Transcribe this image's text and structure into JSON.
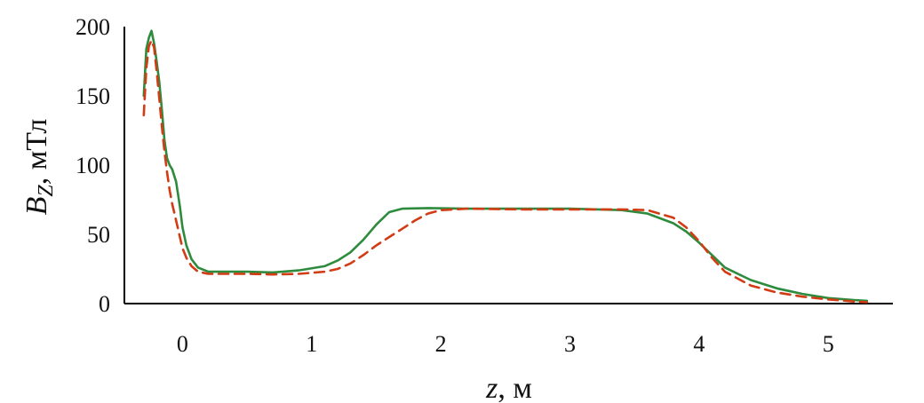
{
  "chart_data": {
    "type": "line",
    "xlabel": "z, м",
    "ylabel": "BZ, мТл",
    "xlim": [
      -0.45,
      5.5
    ],
    "ylim": [
      0,
      200
    ],
    "x_ticks": [
      "0",
      "1",
      "2",
      "3",
      "4",
      "5"
    ],
    "y_ticks": [
      "0",
      "50",
      "100",
      "150",
      "200"
    ],
    "grid": false,
    "series": [
      {
        "color": "#2e8b3e",
        "style": "solid",
        "x": [
          -0.3,
          -0.28,
          -0.26,
          -0.24,
          -0.22,
          -0.2,
          -0.18,
          -0.16,
          -0.14,
          -0.12,
          -0.1,
          -0.08,
          -0.05,
          -0.02,
          0.0,
          0.03,
          0.07,
          0.12,
          0.2,
          0.35,
          0.5,
          0.7,
          0.9,
          1.1,
          1.2,
          1.3,
          1.4,
          1.5,
          1.6,
          1.7,
          1.9,
          2.2,
          2.6,
          3.0,
          3.4,
          3.6,
          3.8,
          3.9,
          4.0,
          4.1,
          4.2,
          4.4,
          4.6,
          4.8,
          5.0,
          5.2,
          5.3
        ],
        "y": [
          150,
          184,
          192,
          197,
          188,
          175,
          160,
          140,
          118,
          105,
          100,
          97,
          88,
          70,
          55,
          42,
          32,
          26,
          23,
          23,
          23,
          22.5,
          24,
          27,
          31,
          37,
          46,
          57,
          66,
          68.5,
          69,
          68.5,
          68.5,
          68.5,
          67.5,
          65,
          58,
          52,
          44,
          35,
          26,
          17,
          11,
          7,
          4,
          2.5,
          2
        ]
      },
      {
        "color": "#d23c14",
        "style": "dashed",
        "x": [
          -0.3,
          -0.28,
          -0.26,
          -0.24,
          -0.22,
          -0.2,
          -0.18,
          -0.16,
          -0.14,
          -0.12,
          -0.1,
          -0.08,
          -0.05,
          -0.02,
          0.0,
          0.03,
          0.07,
          0.12,
          0.2,
          0.35,
          0.5,
          0.7,
          0.9,
          1.1,
          1.2,
          1.3,
          1.4,
          1.5,
          1.6,
          1.7,
          1.8,
          1.9,
          2.0,
          2.2,
          2.6,
          3.0,
          3.4,
          3.6,
          3.8,
          3.9,
          4.0,
          4.1,
          4.2,
          4.4,
          4.6,
          4.8,
          5.0,
          5.2,
          5.3
        ],
        "y": [
          136,
          170,
          186,
          190,
          185,
          168,
          148,
          128,
          110,
          95,
          82,
          72,
          60,
          48,
          40,
          33,
          27,
          23,
          21.5,
          21.5,
          21.5,
          21,
          21.5,
          23,
          25,
          29,
          35,
          42,
          48,
          54,
          60,
          65,
          67.5,
          68.5,
          68,
          68,
          68,
          67.5,
          62,
          55,
          45,
          33,
          23,
          13,
          8,
          5,
          3,
          1.5,
          1
        ]
      }
    ]
  }
}
